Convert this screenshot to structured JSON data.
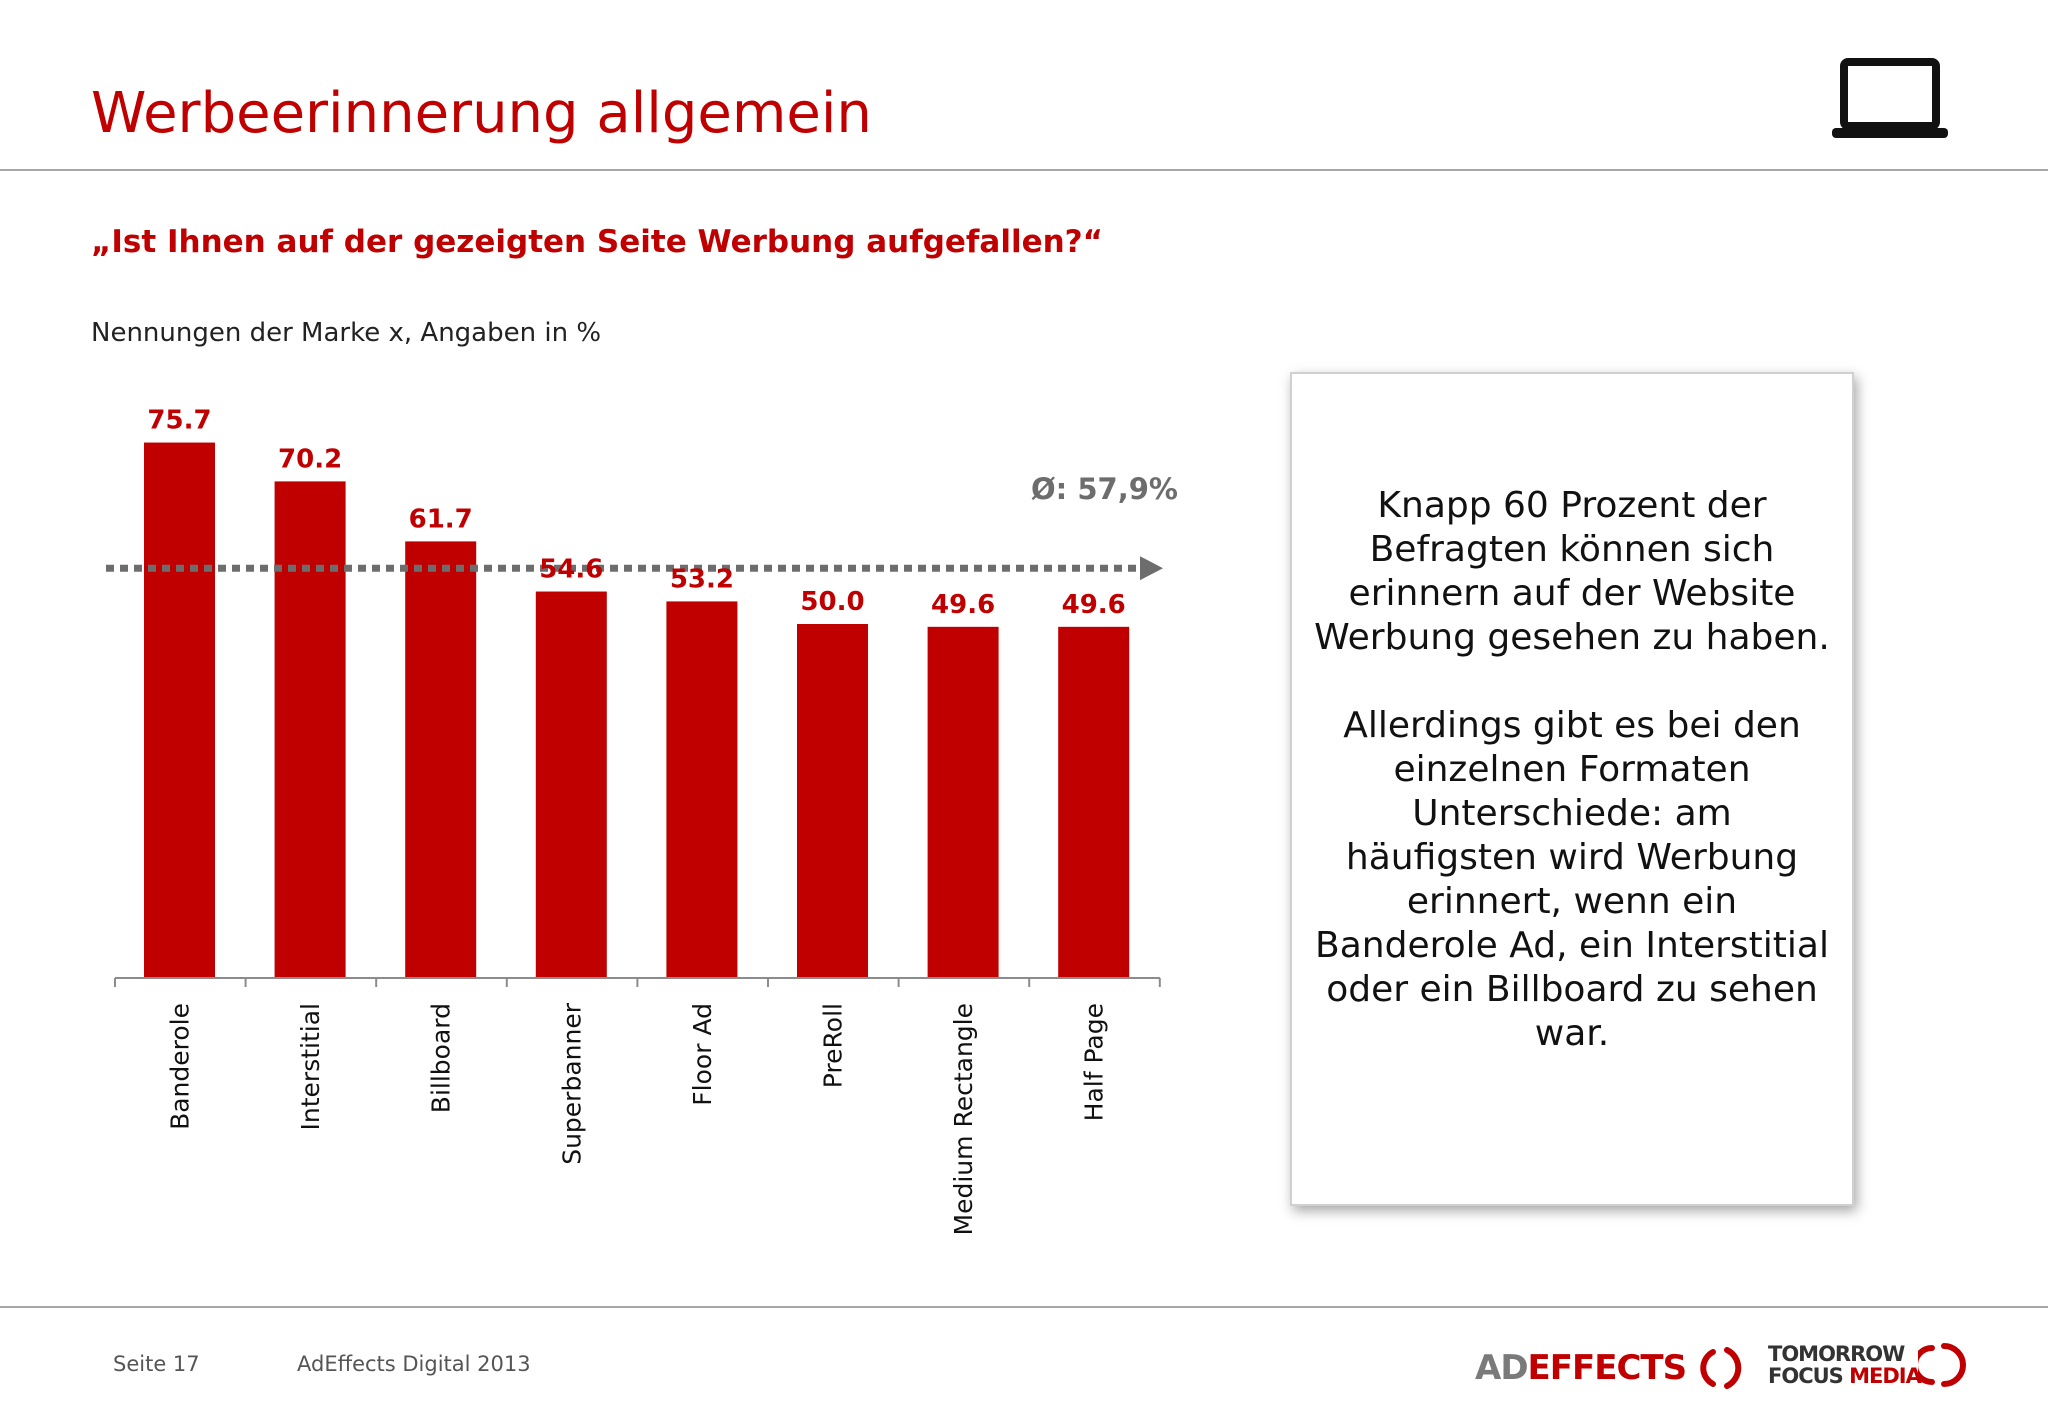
{
  "page": {
    "title": "Werbeerinnerung allgemein",
    "question": "„Ist Ihnen auf der gezeigten Seite Werbung aufgefallen?“",
    "subtitle": "Nennungen der Marke x, Angaben in %",
    "icon": "laptop-icon"
  },
  "chart_data": {
    "type": "bar",
    "categories": [
      "Banderole",
      "Interstitial",
      "Billboard",
      "Superbanner",
      "Floor Ad",
      "PreRoll",
      "Medium Rectangle",
      "Half Page"
    ],
    "values": [
      75.7,
      70.2,
      61.7,
      54.6,
      53.2,
      50.0,
      49.6,
      49.6
    ],
    "value_labels": [
      "75.7",
      "70.2",
      "61.7",
      "54.6",
      "53.2",
      "50.0",
      "49.6",
      "49.6"
    ],
    "ylim": [
      0,
      80
    ],
    "average": 57.9,
    "average_label": "Ø: 57,9%",
    "bar_color": "#c00000",
    "label_color": "#c00000",
    "average_line_color": "#6d6d6d",
    "grid": false,
    "legend": "none"
  },
  "callout": {
    "paragraph1": "Knapp 60 Prozent der Befragten können sich erinnern auf der Website Werbung gesehen zu haben.",
    "paragraph2": "Allerdings gibt es bei den einzelnen Formaten Unterschiede: am häufigsten wird Werbung erinnert, wenn ein Banderole Ad, ein Interstitial oder ein Billboard zu sehen war."
  },
  "footer": {
    "page": "Seite 17",
    "study": "AdEffects Digital 2013",
    "logo_ad": {
      "part1": "AD",
      "part2": "EFFECTS"
    },
    "logo_tf": {
      "line1": "TOMORROW",
      "line2a": "FOCUS",
      "line2b": "MEDIA"
    }
  },
  "colors": {
    "accent": "#c00000",
    "divider": "#a6a6a6"
  }
}
